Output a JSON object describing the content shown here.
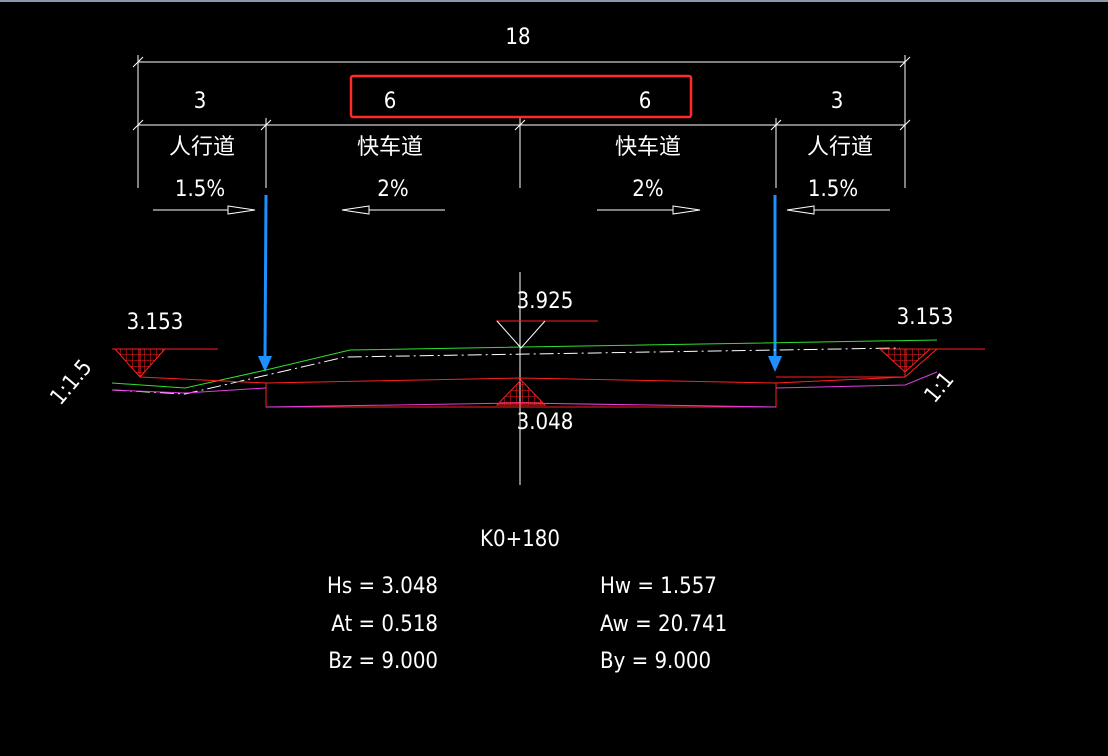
{
  "dimensions": {
    "total": "18",
    "segments": [
      "3",
      "6",
      "6",
      "3"
    ]
  },
  "lanes": [
    "人行道",
    "快车道",
    "快车道",
    "人行道"
  ],
  "slopes": [
    "1.5%",
    "2%",
    "2%",
    "1.5%"
  ],
  "elevations": {
    "left": "3.153",
    "center_top": "3.925",
    "center_bottom": "3.048",
    "right": "3.153"
  },
  "side_slopes": {
    "left": "1:1.5",
    "right": "1:1"
  },
  "station": "K0+180",
  "stats": {
    "left": [
      "Hs = 3.048",
      "At = 0.518",
      "Bz = 9.000"
    ],
    "right": [
      "Hw = 1.557",
      "Aw = 20.741",
      "By = 9.000"
    ]
  }
}
